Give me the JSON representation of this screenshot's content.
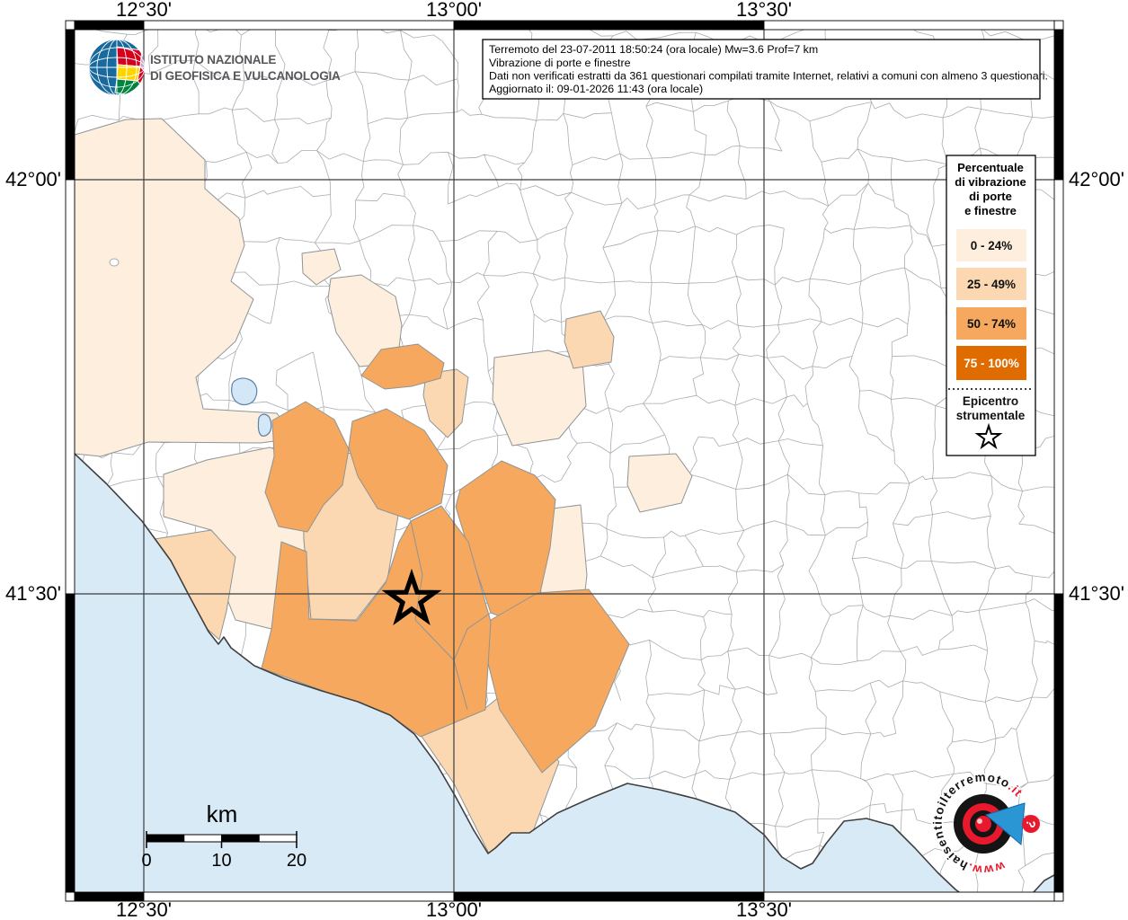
{
  "title_box": {
    "lines": [
      "Terremoto del 23-07-2011 18:50:24 (ora locale) Mw=3.6 Prof=7 km",
      "Vibrazione di porte e finestre",
      "Dati non verificati estratti da 361 questionari compilati tramite Internet, relativi a comuni con almeno 3 questionari.",
      "Aggiornato il: 09-01-2026 11:43 (ora locale)"
    ]
  },
  "ingv": {
    "line1": "ISTITUTO NAZIONALE",
    "line2": "DI GEOFISICA E VULCANOLOGIA"
  },
  "legend": {
    "title_lines": [
      "Percentuale",
      "di vibrazione",
      "di porte",
      "e finestre"
    ],
    "classes": [
      {
        "label": "0 - 24%",
        "color": "#fdeedd",
        "text_color": "#111111"
      },
      {
        "label": "25 - 49%",
        "color": "#fbd8b2",
        "text_color": "#111111"
      },
      {
        "label": "50 - 74%",
        "color": "#f5a85e",
        "text_color": "#111111"
      },
      {
        "label": "75 - 100%",
        "color": "#e06c00",
        "text_color": "#ffffff"
      }
    ],
    "epicenter": {
      "line1": "Epicentro",
      "line2": "strumentale"
    }
  },
  "axes": {
    "lon": [
      "12°30'",
      "13°00'",
      "13°30'"
    ],
    "lat": [
      "42°00'",
      "41°30'"
    ]
  },
  "scale_bar": {
    "unit": "km",
    "ticks": [
      "0",
      "10",
      "20"
    ]
  },
  "watermark": {
    "prefix": "www.",
    "main": "haisentitoilterremoto",
    "suffix": ".it"
  },
  "map": {
    "sea_color": "#d9eaf7",
    "lake_color": "#d3e7f7",
    "grid_color": "#3c3c3c",
    "mesh_color": "#a9adb0",
    "region_border_color": "#8f9496",
    "coast_color": "#3f3f3f"
  }
}
